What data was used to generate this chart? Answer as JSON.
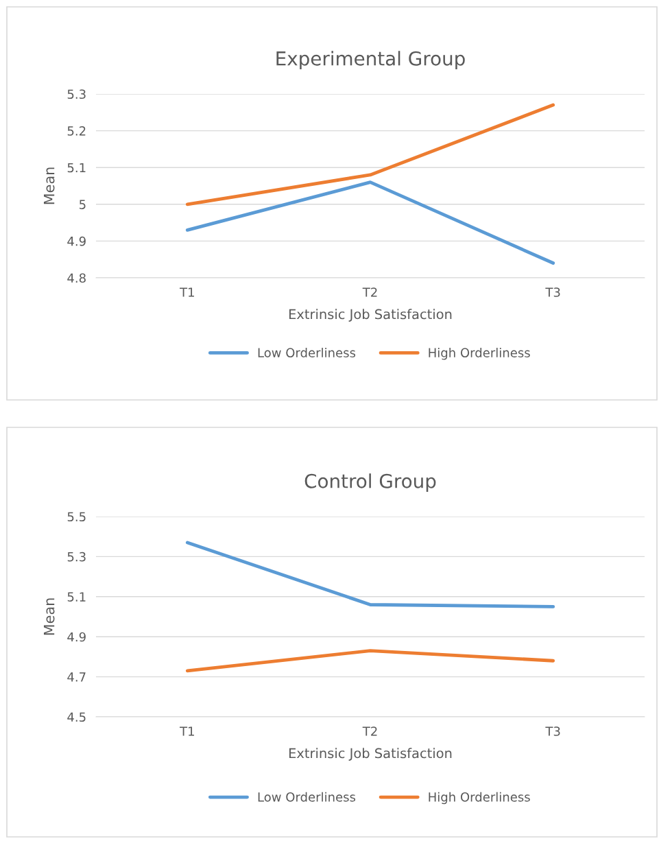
{
  "chart_data": [
    {
      "type": "line",
      "title": "Experimental Group",
      "xlabel": "Extrinsic Job Satisfaction",
      "ylabel": "Mean",
      "categories": [
        "T1",
        "T2",
        "T3"
      ],
      "series": [
        {
          "name": "Low Orderliness",
          "color": "#5b9bd5",
          "values": [
            4.93,
            5.06,
            4.84
          ]
        },
        {
          "name": "High Orderliness",
          "color": "#ed7d31",
          "values": [
            5.0,
            5.08,
            5.27
          ]
        }
      ],
      "ylim": [
        4.8,
        5.3
      ],
      "yticks": [
        4.8,
        4.9,
        {
          "value": 5.0,
          "label": "5"
        },
        5.1,
        5.2,
        5.3
      ],
      "grid": "y",
      "legend": "bottom",
      "marker": "none",
      "line_style": "solid"
    },
    {
      "type": "line",
      "title": "Control Group",
      "xlabel": "Extrinsic Job Satisfaction",
      "ylabel": "Mean",
      "categories": [
        "T1",
        "T2",
        "T3"
      ],
      "series": [
        {
          "name": "Low Orderliness",
          "color": "#5b9bd5",
          "values": [
            5.37,
            5.06,
            5.05
          ]
        },
        {
          "name": "High Orderliness",
          "color": "#ed7d31",
          "values": [
            4.73,
            4.83,
            4.78
          ]
        }
      ],
      "ylim": [
        4.5,
        5.5
      ],
      "yticks": [
        4.5,
        4.7,
        4.9,
        5.1,
        5.3,
        5.5
      ],
      "grid": "y",
      "legend": "bottom",
      "marker": "none",
      "line_style": "solid"
    }
  ]
}
